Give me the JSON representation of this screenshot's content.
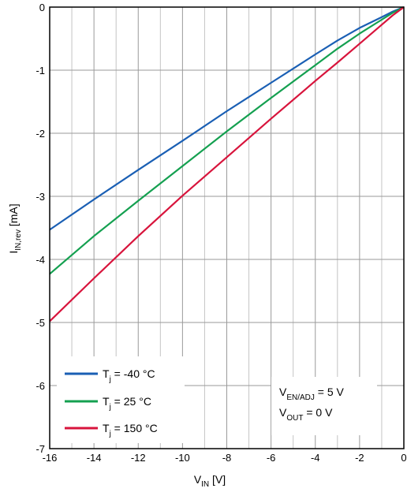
{
  "chart_data": {
    "type": "line",
    "title": "",
    "xlabel": {
      "main": "V",
      "sub": "IN",
      "unit": " [V]"
    },
    "ylabel": {
      "main": "I",
      "sub": "IN,rev",
      "unit": " [mA]"
    },
    "xlim": [
      -16,
      0
    ],
    "ylim": [
      -7,
      0
    ],
    "x_ticks": [
      -16,
      -14,
      -12,
      -10,
      -8,
      -6,
      -4,
      -2,
      0
    ],
    "y_ticks": [
      0,
      -1,
      -2,
      -3,
      -4,
      -5,
      -6,
      -7
    ],
    "grid": true,
    "legend_position": "bottom-left",
    "series": [
      {
        "label": {
          "main": "T",
          "sub": "j",
          "rest": " = -40 °C"
        },
        "color": "#1a5fb4",
        "x": [
          -16,
          -14,
          -12,
          -10,
          -8,
          -6,
          -4,
          -3,
          -2,
          -1,
          -0.5,
          0
        ],
        "y": [
          -3.53,
          -3.05,
          -2.58,
          -2.12,
          -1.65,
          -1.2,
          -0.75,
          -0.53,
          -0.33,
          -0.16,
          -0.07,
          0
        ]
      },
      {
        "label": {
          "main": "T",
          "sub": "j",
          "rest": " = 25 °C"
        },
        "color": "#14a050",
        "x": [
          -16,
          -14,
          -12,
          -10,
          -8,
          -6,
          -4,
          -3,
          -2,
          -1,
          -0.5,
          0
        ],
        "y": [
          -4.23,
          -3.63,
          -3.07,
          -2.52,
          -1.97,
          -1.44,
          -0.92,
          -0.66,
          -0.42,
          -0.2,
          -0.09,
          0
        ]
      },
      {
        "label": {
          "main": "T",
          "sub": "j",
          "rest": " = 150 °C"
        },
        "color": "#d8143c",
        "x": [
          -16,
          -14,
          -12,
          -10,
          -8,
          -6,
          -4,
          -3,
          -2,
          -1,
          -0.5,
          0
        ],
        "y": [
          -4.98,
          -4.3,
          -3.63,
          -2.99,
          -2.38,
          -1.77,
          -1.17,
          -0.88,
          -0.58,
          -0.28,
          -0.13,
          0
        ]
      }
    ],
    "annotations": [
      {
        "main": "V",
        "sub": "EN/ADJ",
        "rest": " = 5 V"
      },
      {
        "main": "V",
        "sub": "OUT",
        "rest": " = 0 V"
      }
    ]
  }
}
